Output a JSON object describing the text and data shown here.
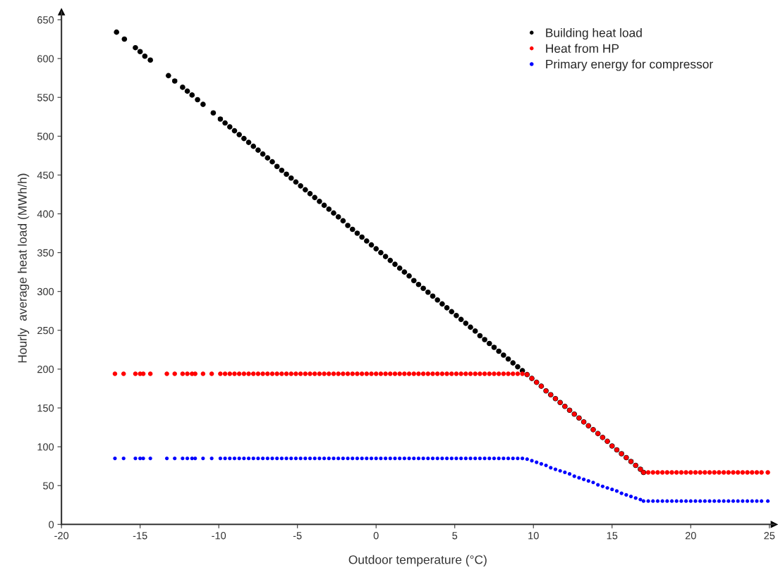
{
  "chart_data": {
    "type": "scatter",
    "xlabel": "Outdoor temperature (°C)",
    "ylabel": "Hourly  average heat load (MWh/h)",
    "xlim": [
      -20,
      25.3
    ],
    "ylim": [
      0,
      660
    ],
    "xticks": [
      -20,
      -15,
      -10,
      -5,
      0,
      5,
      10,
      15,
      20,
      25
    ],
    "yticks": [
      0,
      50,
      100,
      150,
      200,
      250,
      300,
      350,
      400,
      450,
      500,
      550,
      600,
      650
    ],
    "grid": false,
    "legend": "top right",
    "marker": "circle",
    "series": [
      {
        "name": "Building heat load",
        "color": "#000000",
        "x": [
          -16.5,
          -16.0,
          -15.3,
          -15.0,
          -14.7,
          -14.35,
          -13.2,
          -12.8,
          -12.3,
          -12.0,
          -11.7,
          -11.35,
          -11.0,
          -10.35,
          -9.9,
          -9.6,
          -9.3,
          -9.0,
          -8.7,
          -8.4,
          -8.1,
          -7.8,
          -7.5,
          -7.2,
          -6.9,
          -6.6,
          -6.3,
          -6.0,
          -5.7,
          -5.4,
          -5.1,
          -4.8,
          -4.5,
          -4.2,
          -3.9,
          -3.6,
          -3.3,
          -3.0,
          -2.7,
          -2.4,
          -2.1,
          -1.8,
          -1.5,
          -1.2,
          -0.9,
          -0.6,
          -0.3,
          0.0,
          0.3,
          0.6,
          0.9,
          1.2,
          1.5,
          1.8,
          2.1,
          2.4,
          2.7,
          3.0,
          3.3,
          3.6,
          3.9,
          4.2,
          4.5,
          4.8,
          5.1,
          5.4,
          5.7,
          6.0,
          6.3,
          6.6,
          6.9,
          7.2,
          7.5,
          7.8,
          8.1,
          8.4,
          8.7,
          9.0,
          9.3,
          9.6,
          9.9,
          10.2,
          10.5,
          10.8,
          11.1,
          11.4,
          11.7,
          12.0,
          12.3,
          12.6,
          12.9,
          13.2,
          13.5,
          13.8,
          14.1,
          14.4,
          14.7,
          15.0,
          15.3,
          15.6,
          15.9,
          16.2,
          16.5,
          16.8,
          17.0
        ],
        "values": [
          634,
          625,
          614,
          609,
          603,
          598,
          578,
          571,
          563,
          558,
          553,
          547,
          541,
          530,
          522,
          517,
          512,
          507,
          502,
          497,
          492,
          487,
          482,
          477,
          472,
          467,
          461,
          456,
          451,
          446,
          441,
          436,
          431,
          426,
          421,
          416,
          411,
          406,
          401,
          396,
          391,
          385,
          380,
          375,
          370,
          365,
          360,
          355,
          350,
          345,
          340,
          335,
          330,
          325,
          320,
          314,
          309,
          304,
          299,
          294,
          289,
          284,
          279,
          274,
          269,
          264,
          259,
          254,
          249,
          243,
          238,
          233,
          228,
          223,
          218,
          213,
          208,
          203,
          198,
          193,
          188,
          183,
          178,
          172,
          167,
          162,
          157,
          152,
          147,
          142,
          137,
          132,
          127,
          122,
          117,
          112,
          107,
          101,
          96,
          91,
          86,
          81,
          76,
          71,
          67
        ]
      },
      {
        "name": "Heat from HP",
        "color": "#ff0000",
        "x": [
          -16.6,
          -16.05,
          -15.3,
          -15.0,
          -14.8,
          -14.35,
          -13.3,
          -12.8,
          -12.3,
          -12.0,
          -11.7,
          -11.5,
          -11.0,
          -10.45,
          -9.9,
          -9.6,
          -9.3,
          -9.0,
          -8.7,
          -8.4,
          -8.1,
          -7.8,
          -7.5,
          -7.2,
          -6.9,
          -6.6,
          -6.3,
          -6.0,
          -5.7,
          -5.4,
          -5.1,
          -4.8,
          -4.5,
          -4.2,
          -3.9,
          -3.6,
          -3.3,
          -3.0,
          -2.7,
          -2.4,
          -2.1,
          -1.8,
          -1.5,
          -1.2,
          -0.9,
          -0.6,
          -0.3,
          0.0,
          0.3,
          0.6,
          0.9,
          1.2,
          1.5,
          1.8,
          2.1,
          2.4,
          2.7,
          3.0,
          3.3,
          3.6,
          3.9,
          4.2,
          4.5,
          4.8,
          5.1,
          5.4,
          5.7,
          6.0,
          6.3,
          6.6,
          6.9,
          7.2,
          7.5,
          7.8,
          8.1,
          8.4,
          8.7,
          9.0,
          9.3,
          9.6,
          9.9,
          10.2,
          10.5,
          10.8,
          11.1,
          11.4,
          11.7,
          12.0,
          12.3,
          12.6,
          12.9,
          13.2,
          13.5,
          13.8,
          14.1,
          14.4,
          14.7,
          15.0,
          15.3,
          15.6,
          15.9,
          16.2,
          16.5,
          16.8,
          17.0,
          17.3,
          17.6,
          17.9,
          18.2,
          18.5,
          18.8,
          19.1,
          19.4,
          19.7,
          20.0,
          20.3,
          20.6,
          20.9,
          21.2,
          21.5,
          21.8,
          22.1,
          22.4,
          22.7,
          23.0,
          23.3,
          23.6,
          23.9,
          24.2,
          24.5,
          24.9
        ],
        "values": [
          194,
          194,
          194,
          194,
          194,
          194,
          194,
          194,
          194,
          194,
          194,
          194,
          194,
          194,
          194,
          194,
          194,
          194,
          194,
          194,
          194,
          194,
          194,
          194,
          194,
          194,
          194,
          194,
          194,
          194,
          194,
          194,
          194,
          194,
          194,
          194,
          194,
          194,
          194,
          194,
          194,
          194,
          194,
          194,
          194,
          194,
          194,
          194,
          194,
          194,
          194,
          194,
          194,
          194,
          194,
          194,
          194,
          194,
          194,
          194,
          194,
          194,
          194,
          194,
          194,
          194,
          194,
          194,
          194,
          194,
          194,
          194,
          194,
          194,
          194,
          194,
          194,
          194,
          194,
          193,
          188,
          183,
          178,
          172,
          167,
          162,
          157,
          152,
          147,
          142,
          137,
          132,
          127,
          122,
          117,
          112,
          107,
          101,
          96,
          91,
          86,
          81,
          76,
          71,
          67,
          67,
          67,
          67,
          67,
          67,
          67,
          67,
          67,
          67,
          67,
          67,
          67,
          67,
          67,
          67,
          67,
          67,
          67,
          67,
          67,
          67,
          67,
          67,
          67,
          67,
          67
        ]
      },
      {
        "name": "Primary energy for compressor",
        "color": "#0000ff",
        "x": [
          -16.6,
          -16.05,
          -15.3,
          -15.0,
          -14.8,
          -14.35,
          -13.3,
          -12.8,
          -12.3,
          -12.0,
          -11.7,
          -11.5,
          -11.0,
          -10.45,
          -9.9,
          -9.6,
          -9.3,
          -9.0,
          -8.7,
          -8.4,
          -8.1,
          -7.8,
          -7.5,
          -7.2,
          -6.9,
          -6.6,
          -6.3,
          -6.0,
          -5.7,
          -5.4,
          -5.1,
          -4.8,
          -4.5,
          -4.2,
          -3.9,
          -3.6,
          -3.3,
          -3.0,
          -2.7,
          -2.4,
          -2.1,
          -1.8,
          -1.5,
          -1.2,
          -0.9,
          -0.6,
          -0.3,
          0.0,
          0.3,
          0.6,
          0.9,
          1.2,
          1.5,
          1.8,
          2.1,
          2.4,
          2.7,
          3.0,
          3.3,
          3.6,
          3.9,
          4.2,
          4.5,
          4.8,
          5.1,
          5.4,
          5.7,
          6.0,
          6.3,
          6.6,
          6.9,
          7.2,
          7.5,
          7.8,
          8.1,
          8.4,
          8.7,
          9.0,
          9.3,
          9.6,
          9.9,
          10.2,
          10.5,
          10.8,
          11.1,
          11.4,
          11.7,
          12.0,
          12.3,
          12.6,
          12.9,
          13.2,
          13.5,
          13.8,
          14.1,
          14.4,
          14.7,
          15.0,
          15.3,
          15.6,
          15.9,
          16.2,
          16.5,
          16.8,
          17.0,
          17.3,
          17.6,
          17.9,
          18.2,
          18.5,
          18.8,
          19.1,
          19.4,
          19.7,
          20.0,
          20.3,
          20.6,
          20.9,
          21.2,
          21.5,
          21.8,
          22.1,
          22.4,
          22.7,
          23.0,
          23.3,
          23.6,
          23.9,
          24.2,
          24.5,
          24.9
        ],
        "values": [
          85,
          85,
          85,
          85,
          85,
          85,
          85,
          85,
          85,
          85,
          85,
          85,
          85,
          85,
          85,
          85,
          85,
          85,
          85,
          85,
          85,
          85,
          85,
          85,
          85,
          85,
          85,
          85,
          85,
          85,
          85,
          85,
          85,
          85,
          85,
          85,
          85,
          85,
          85,
          85,
          85,
          85,
          85,
          85,
          85,
          85,
          85,
          85,
          85,
          85,
          85,
          85,
          85,
          85,
          85,
          85,
          85,
          85,
          85,
          85,
          85,
          85,
          85,
          85,
          85,
          85,
          85,
          85,
          85,
          85,
          85,
          85,
          85,
          85,
          85,
          85,
          85,
          85,
          85,
          84,
          82,
          80,
          78,
          76,
          73,
          71,
          69,
          67,
          65,
          62,
          60,
          58,
          56,
          54,
          51,
          49,
          47,
          45,
          43,
          40,
          38,
          36,
          34,
          32,
          30,
          30,
          30,
          30,
          30,
          30,
          30,
          30,
          30,
          30,
          30,
          30,
          30,
          30,
          30,
          30,
          30,
          30,
          30,
          30,
          30,
          30,
          30,
          30,
          30,
          30,
          30
        ]
      }
    ]
  }
}
